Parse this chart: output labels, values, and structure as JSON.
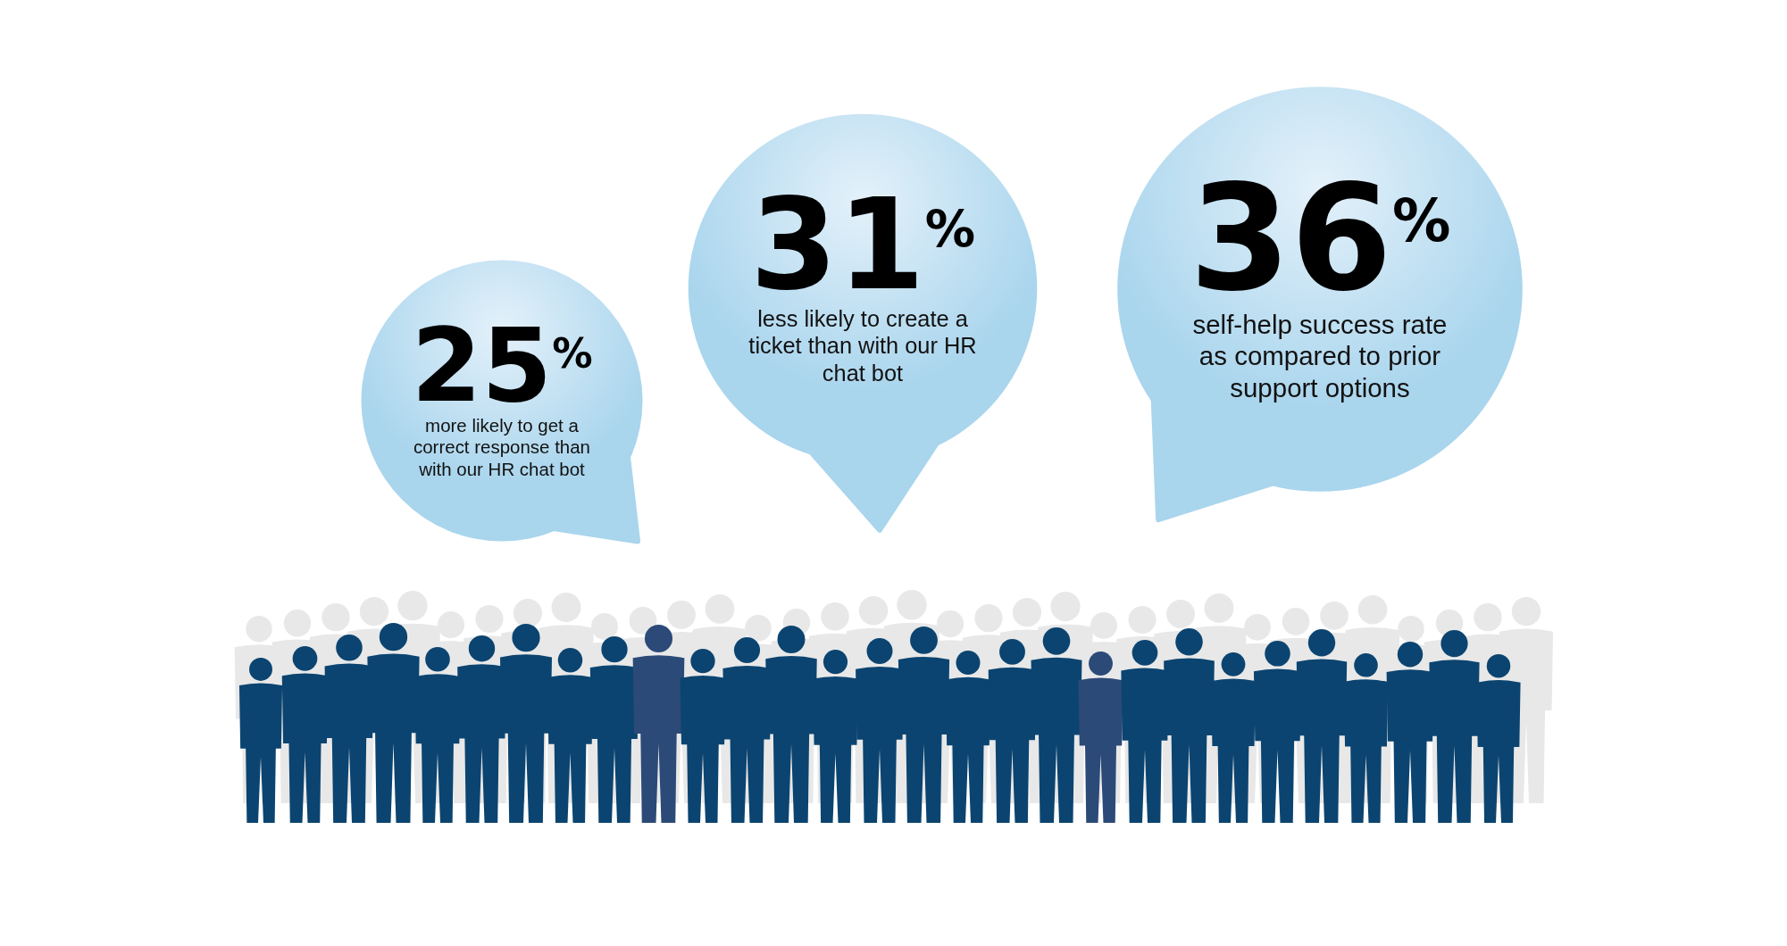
{
  "chart_data": {
    "type": "other",
    "categories": [
      "more likely to get a correct response than with our HR chat bot",
      "less likely to create a ticket than with our HR chat bot",
      "self-help success rate as compared to prior support options"
    ],
    "values": [
      25,
      31,
      36
    ],
    "value_labels": [
      "25$^{%}$",
      "31$^{%}$",
      "36$^{%}$"
    ],
    "color": "#a9d5ed"
  }
}
